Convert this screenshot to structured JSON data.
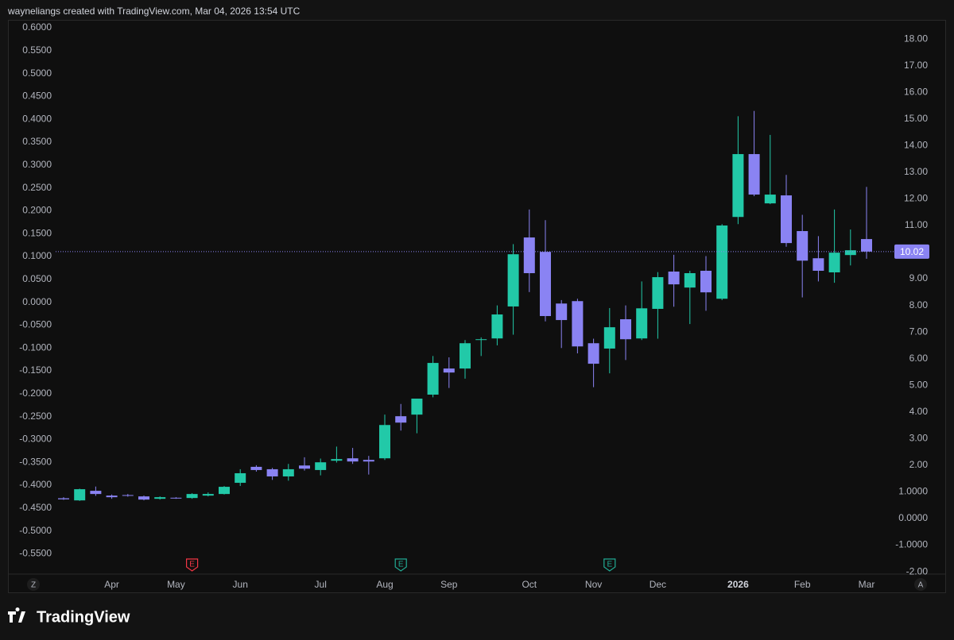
{
  "header": "wayneliangs created with TradingView.com, Mar 04, 2026 13:54 UTC",
  "brand": "TradingView",
  "axis_buttons": [
    "Z",
    "A"
  ],
  "chart_data": {
    "type": "candlestick",
    "up_color": "#22c9a8",
    "down_color": "#8a83f3",
    "categories": [
      null,
      null,
      null,
      "Apr",
      null,
      null,
      null,
      "May",
      null,
      null,
      null,
      "Jun",
      null,
      null,
      null,
      null,
      "Jul",
      null,
      null,
      null,
      "Aug",
      null,
      null,
      null,
      "Sep",
      null,
      null,
      null,
      null,
      "Oct",
      null,
      null,
      null,
      "Nov",
      null,
      null,
      null,
      "Dec",
      null,
      null,
      null,
      null,
      "2026",
      null,
      null,
      null,
      "Feb",
      null,
      null,
      null,
      "Mar"
    ],
    "open": [
      0.76,
      0.68,
      1.04,
      0.86,
      0.88,
      0.83,
      0.74,
      0.78,
      0.77,
      0.86,
      0.92,
      1.34,
      1.94,
      1.85,
      1.58,
      1.99,
      1.82,
      2.17,
      2.26,
      2.2,
      2.26,
      3.84,
      3.9,
      4.65,
      5.63,
      5.63,
      6.7,
      6.76,
      7.96,
      10.55,
      10.01,
      8.07,
      8.16,
      6.58,
      6.38,
      7.48,
      6.76,
      7.87,
      9.27,
      8.67,
      9.3,
      8.25,
      11.32,
      13.68,
      11.83,
      12.13,
      10.79,
      9.77,
      9.24,
      9.89,
      10.49
    ],
    "high": [
      0.8,
      1.12,
      1.2,
      0.9,
      0.92,
      0.86,
      0.83,
      0.8,
      0.95,
      0.98,
      1.22,
      1.85,
      2.0,
      1.9,
      2.05,
      2.3,
      2.25,
      2.7,
      2.65,
      2.35,
      3.9,
      4.3,
      4.5,
      6.1,
      6.05,
      6.7,
      6.8,
      8.0,
      10.3,
      11.6,
      11.2,
      8.2,
      8.25,
      6.75,
      7.9,
      8.0,
      8.9,
      9.25,
      9.9,
      9.3,
      9.85,
      11.05,
      15.1,
      15.3,
      14.4,
      12.9,
      11.4,
      10.6,
      11.6,
      10.85,
      12.45
    ],
    "low": [
      0.7,
      0.66,
      0.85,
      0.74,
      0.82,
      0.68,
      0.71,
      0.74,
      0.74,
      0.83,
      0.9,
      1.22,
      1.76,
      1.45,
      1.42,
      1.8,
      1.62,
      2.1,
      2.05,
      1.65,
      2.2,
      3.3,
      3.2,
      4.55,
      4.9,
      5.25,
      6.1,
      6.5,
      6.9,
      8.5,
      7.4,
      6.4,
      6.2,
      4.93,
      5.45,
      5.95,
      6.7,
      6.75,
      7.95,
      7.3,
      7.8,
      8.2,
      11.05,
      12.1,
      11.8,
      10.2,
      8.3,
      8.9,
      8.85,
      9.5,
      9.75
    ],
    "close": [
      0.72,
      1.1,
      0.92,
      0.8,
      0.85,
      0.71,
      0.8,
      0.76,
      0.92,
      0.92,
      1.19,
      1.7,
      1.82,
      1.58,
      1.85,
      1.87,
      2.11,
      2.23,
      2.14,
      2.14,
      3.51,
      3.6,
      4.5,
      5.84,
      5.48,
      6.58,
      6.73,
      7.66,
      9.92,
      9.21,
      7.6,
      7.45,
      6.46,
      5.81,
      7.18,
      6.73,
      7.89,
      9.06,
      8.79,
      9.21,
      8.49,
      11.0,
      13.68,
      12.16,
      12.16,
      10.34,
      9.68,
      9.3,
      9.98,
      10.07,
      10.02
    ],
    "last_price": 10.02,
    "ylim": [
      -2.2,
      18.6
    ],
    "yticks": [
      {
        "value": 18,
        "label": "18.00"
      },
      {
        "value": 17,
        "label": "17.00"
      },
      {
        "value": 16,
        "label": "16.00"
      },
      {
        "value": 15,
        "label": "15.00"
      },
      {
        "value": 14,
        "label": "14.00"
      },
      {
        "value": 13,
        "label": "13.00"
      },
      {
        "value": 12,
        "label": "12.00"
      },
      {
        "value": 11,
        "label": "11.00"
      },
      {
        "value": 10,
        "label": "10.00"
      },
      {
        "value": 9,
        "label": "9.00"
      },
      {
        "value": 8,
        "label": "8.00"
      },
      {
        "value": 7,
        "label": "7.00"
      },
      {
        "value": 6,
        "label": "6.00"
      },
      {
        "value": 5,
        "label": "5.00"
      },
      {
        "value": 4,
        "label": "4.00"
      },
      {
        "value": 3,
        "label": "3.00"
      },
      {
        "value": 2,
        "label": "2.00"
      },
      {
        "value": 1,
        "label": "1.0000"
      },
      {
        "value": 0,
        "label": "0.0000"
      },
      {
        "value": -1,
        "label": "-1.0000"
      },
      {
        "value": -2,
        "label": "-2.00"
      }
    ],
    "y2lim": [
      -0.601,
      0.6104
    ],
    "y2ticks": [
      {
        "value": 0.6,
        "label": "0.6000"
      },
      {
        "value": 0.55,
        "label": "0.5500"
      },
      {
        "value": 0.5,
        "label": "0.5000"
      },
      {
        "value": 0.45,
        "label": "0.4500"
      },
      {
        "value": 0.4,
        "label": "0.4000"
      },
      {
        "value": 0.35,
        "label": "0.3500"
      },
      {
        "value": 0.3,
        "label": "0.3000"
      },
      {
        "value": 0.25,
        "label": "0.2500"
      },
      {
        "value": 0.2,
        "label": "0.2000"
      },
      {
        "value": 0.15,
        "label": "0.1500"
      },
      {
        "value": 0.1,
        "label": "0.1000"
      },
      {
        "value": 0.05,
        "label": "0.0500"
      },
      {
        "value": 0,
        "label": "0.0000"
      },
      {
        "value": -0.05,
        "label": "-0.0500"
      },
      {
        "value": -0.1,
        "label": "-0.1000"
      },
      {
        "value": -0.15,
        "label": "-0.1500"
      },
      {
        "value": -0.2,
        "label": "-0.2000"
      },
      {
        "value": -0.25,
        "label": "-0.2500"
      },
      {
        "value": -0.3,
        "label": "-0.3000"
      },
      {
        "value": -0.35,
        "label": "-0.3500"
      },
      {
        "value": -0.4,
        "label": "-0.4000"
      },
      {
        "value": -0.45,
        "label": "-0.4500"
      },
      {
        "value": -0.5,
        "label": "-0.5000"
      },
      {
        "value": -0.55,
        "label": "-0.5500"
      }
    ],
    "events": [
      {
        "label": "E",
        "color": "#f23645"
      },
      {
        "label": "E",
        "color": "#22ab94"
      },
      {
        "label": "E",
        "color": "#22ab94"
      }
    ]
  }
}
